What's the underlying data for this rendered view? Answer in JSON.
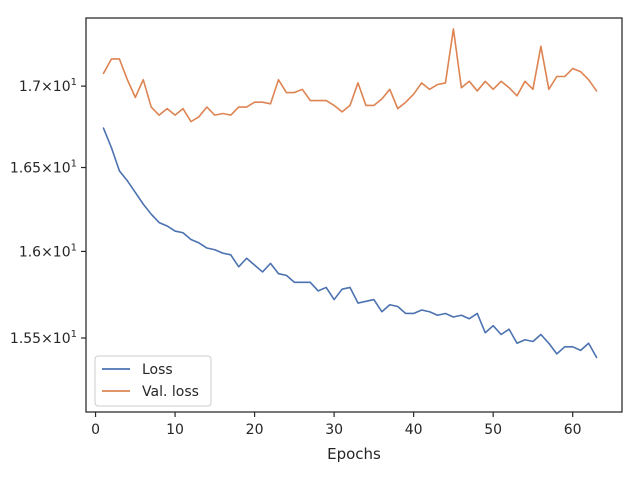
{
  "chart_data": {
    "type": "line",
    "title": "",
    "xlabel": "Epochs",
    "ylabel": "",
    "yscale": "log",
    "xlim": [
      -1.2,
      66.2
    ],
    "ylim": [
      15.085,
      17.43
    ],
    "grid": false,
    "legend_position": "lower-left",
    "x_ticks": [
      {
        "value": 0,
        "label": "0"
      },
      {
        "value": 10,
        "label": "10"
      },
      {
        "value": 20,
        "label": "20"
      },
      {
        "value": 30,
        "label": "30"
      },
      {
        "value": 40,
        "label": "40"
      },
      {
        "value": 50,
        "label": "50"
      },
      {
        "value": 60,
        "label": "60"
      }
    ],
    "y_ticks": [
      {
        "value": 15.5,
        "label_main": "1.55",
        "label_exp": "1"
      },
      {
        "value": 16.0,
        "label_main": "1.6",
        "label_exp": "1"
      },
      {
        "value": 16.5,
        "label_main": "1.65",
        "label_exp": "1"
      },
      {
        "value": 17.0,
        "label_main": "1.7",
        "label_exp": "1"
      }
    ],
    "x": [
      1,
      2,
      3,
      4,
      5,
      6,
      7,
      8,
      9,
      10,
      11,
      12,
      13,
      14,
      15,
      16,
      17,
      18,
      19,
      20,
      21,
      22,
      23,
      24,
      25,
      26,
      27,
      28,
      29,
      30,
      31,
      32,
      33,
      34,
      35,
      36,
      37,
      38,
      39,
      40,
      41,
      42,
      43,
      44,
      45,
      46,
      47,
      48,
      49,
      50,
      51,
      52,
      53,
      54,
      55,
      56,
      57,
      58,
      59,
      60,
      61,
      62,
      63
    ],
    "series": [
      {
        "name": "Loss",
        "color": "#4c72b0",
        "values": [
          16.74,
          16.62,
          16.48,
          16.42,
          16.35,
          16.28,
          16.22,
          16.17,
          16.15,
          16.12,
          16.11,
          16.07,
          16.05,
          16.02,
          16.01,
          15.99,
          15.98,
          15.91,
          15.96,
          15.92,
          15.88,
          15.93,
          15.87,
          15.86,
          15.82,
          15.82,
          15.82,
          15.77,
          15.79,
          15.72,
          15.78,
          15.79,
          15.7,
          15.71,
          15.72,
          15.65,
          15.69,
          15.68,
          15.64,
          15.64,
          15.66,
          15.65,
          15.63,
          15.64,
          15.62,
          15.63,
          15.61,
          15.64,
          15.53,
          15.57,
          15.52,
          15.55,
          15.47,
          15.49,
          15.48,
          15.52,
          15.47,
          15.41,
          15.45,
          15.45,
          15.43,
          15.47,
          15.39
        ]
      },
      {
        "name": "Val. loss",
        "color": "#dd8452",
        "values": [
          17.08,
          17.17,
          17.17,
          17.04,
          16.93,
          17.04,
          16.87,
          16.82,
          16.86,
          16.82,
          16.86,
          16.78,
          16.81,
          16.87,
          16.82,
          16.83,
          16.82,
          16.87,
          16.87,
          16.9,
          16.9,
          16.89,
          17.04,
          16.96,
          16.96,
          16.98,
          16.91,
          16.91,
          16.91,
          16.88,
          16.84,
          16.88,
          17.02,
          16.88,
          16.88,
          16.92,
          16.98,
          16.86,
          16.9,
          16.95,
          17.02,
          16.98,
          17.01,
          17.02,
          17.36,
          16.99,
          17.03,
          16.97,
          17.03,
          16.98,
          17.03,
          16.99,
          16.94,
          17.03,
          16.98,
          17.25,
          16.98,
          17.06,
          17.06,
          17.11,
          17.09,
          17.04,
          16.97
        ]
      }
    ]
  }
}
